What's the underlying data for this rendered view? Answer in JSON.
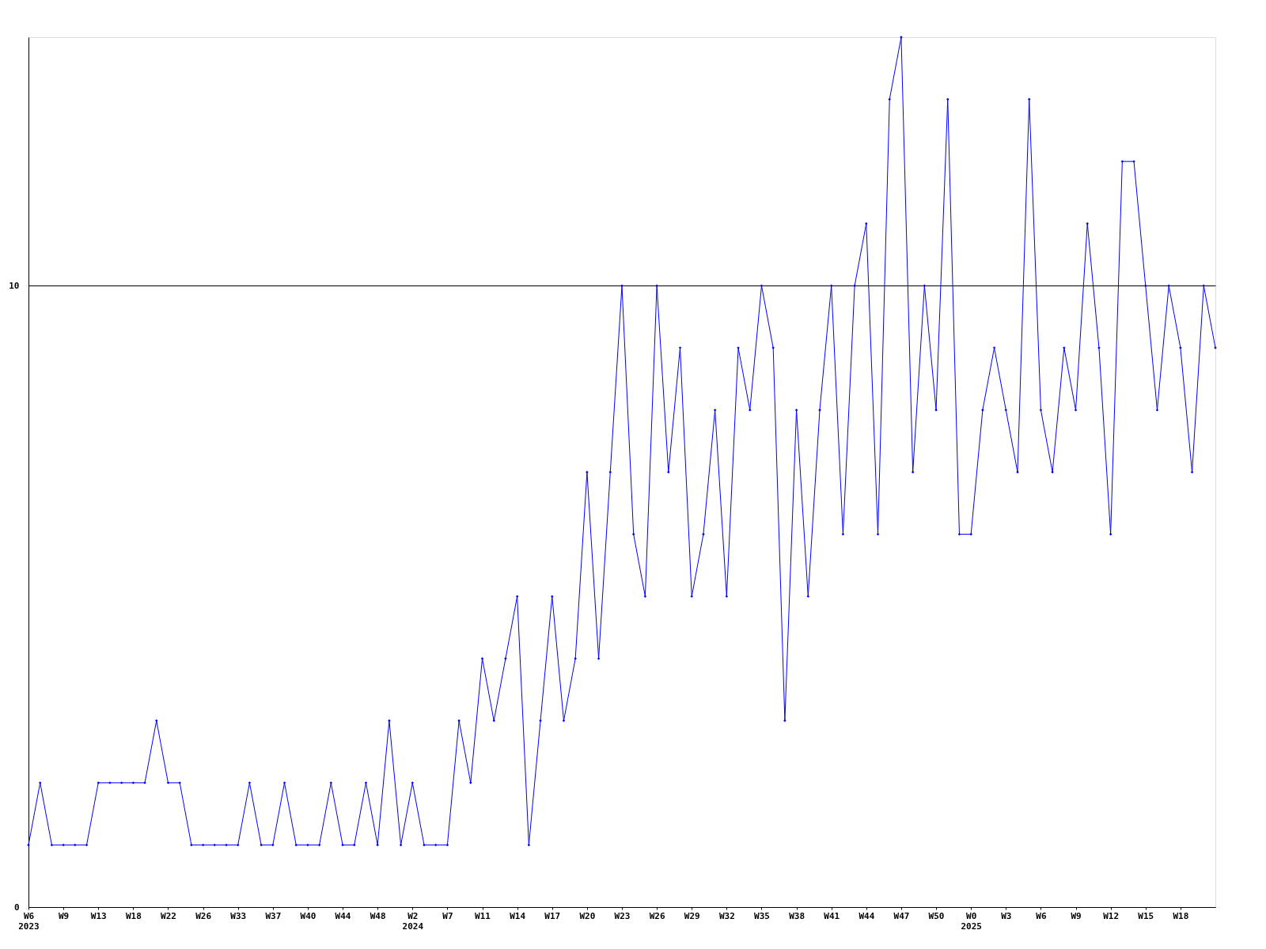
{
  "chart_data": {
    "type": "line",
    "categories": [
      "W6\n2023",
      null,
      null,
      "W9",
      null,
      null,
      "W13",
      null,
      null,
      "W18",
      null,
      null,
      "W22",
      null,
      null,
      "W26",
      null,
      null,
      "W33",
      null,
      null,
      "W37",
      null,
      null,
      "W40",
      null,
      null,
      "W44",
      null,
      null,
      "W48",
      null,
      null,
      "W2\n2024",
      null,
      null,
      "W7",
      null,
      null,
      "W11",
      null,
      null,
      "W14",
      null,
      null,
      "W17",
      null,
      null,
      "W20",
      null,
      null,
      "W23",
      null,
      null,
      "W26",
      null,
      null,
      "W29",
      null,
      null,
      "W32",
      null,
      null,
      "W35",
      null,
      null,
      "W38",
      null,
      null,
      "W41",
      null,
      null,
      "W44",
      null,
      null,
      "W47",
      null,
      null,
      "W50",
      null,
      null,
      "W0\n2025",
      null,
      null,
      "W3",
      null,
      null,
      "W6",
      null,
      null,
      "W9",
      null,
      null,
      "W12",
      null,
      null,
      "W15",
      null,
      null,
      "W18",
      null,
      null,
      null
    ],
    "series": [
      {
        "color": "#0000ff",
        "values": [
          1,
          2,
          1,
          1,
          1,
          1,
          2,
          2,
          2,
          2,
          2,
          3,
          2,
          2,
          1,
          1,
          1,
          1,
          1,
          2,
          1,
          1,
          2,
          1,
          1,
          1,
          2,
          1,
          1,
          2,
          1,
          3,
          1,
          2,
          1,
          1,
          1,
          3,
          2,
          4,
          3,
          4,
          5,
          1,
          3,
          5,
          3,
          4,
          7,
          4,
          7,
          10,
          6,
          5,
          10,
          7,
          9,
          5,
          6,
          8,
          5,
          9,
          8,
          10,
          9,
          3,
          8,
          5,
          8,
          10,
          6,
          10,
          11,
          6,
          13,
          14,
          7,
          10,
          8,
          13,
          6,
          6,
          8,
          9,
          8,
          7,
          13,
          8,
          7,
          9,
          8,
          11,
          9,
          6,
          12,
          12,
          10,
          8,
          10,
          9,
          7,
          10,
          9
        ]
      }
    ],
    "ylim": [
      0,
      14
    ],
    "yticks": [
      0,
      10
    ],
    "grid": "y",
    "marker": "diamond",
    "line_style": "solid",
    "legend": false
  }
}
